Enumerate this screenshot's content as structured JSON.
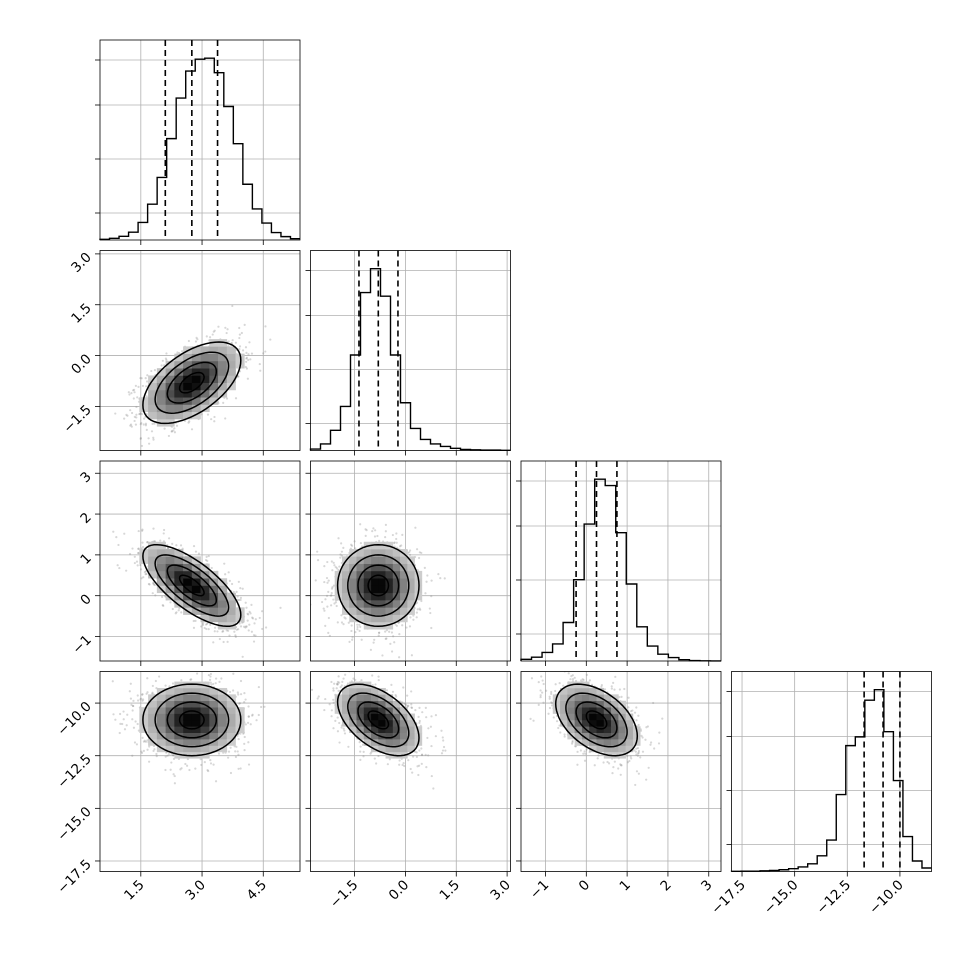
{
  "chart_data": {
    "type": "corner",
    "parameters": [
      {
        "ticks": [
          1.5,
          3.0,
          4.5
        ],
        "tick_labels": [
          "1.5",
          "3.0",
          "4.5"
        ],
        "range": [
          0.5,
          5.4
        ],
        "mean": 2.75,
        "sd": 0.6,
        "quantiles": [
          2.1,
          2.75,
          3.38
        ],
        "hist_values": [
          0.2,
          0.5,
          1.1,
          2.3,
          5.2,
          10.6,
          18.5,
          30.0,
          42.0,
          50.0,
          53.5,
          53.8,
          49.5,
          39.5,
          28.5,
          16.5,
          9.2,
          5.0,
          2.2,
          1.0,
          0.4
        ]
      },
      {
        "ticks": [
          -1.5,
          0.0,
          1.5,
          3.0
        ],
        "tick_labels": [
          "−1.5",
          "0.0",
          "1.5",
          "3.0"
        ],
        "range": [
          -2.8,
          3.1
        ],
        "mean": -0.8,
        "sd": 0.6,
        "quantiles": [
          -1.37,
          -0.8,
          -0.22
        ],
        "hist_values": [
          0.4,
          1.8,
          5.5,
          12.0,
          26.0,
          43.0,
          49.5,
          42.0,
          26.0,
          13.0,
          6.0,
          3.0,
          1.8,
          1.1,
          0.6,
          0.3,
          0.2,
          0.1,
          0.1,
          0.05
        ]
      },
      {
        "ticks": [
          -1,
          0,
          1,
          2,
          3
        ],
        "tick_labels": [
          "−1",
          "0",
          "1",
          "2",
          "3"
        ],
        "range": [
          -1.6,
          3.3
        ],
        "mean": 0.25,
        "sd": 0.5,
        "quantiles": [
          -0.25,
          0.25,
          0.75
        ],
        "hist_values": [
          0.4,
          0.9,
          2.0,
          4.0,
          9.0,
          19.0,
          32.0,
          42.5,
          41.0,
          30.0,
          18.0,
          8.0,
          3.5,
          1.6,
          0.8,
          0.3,
          0.1,
          0.05,
          0.02
        ]
      },
      {
        "ticks": [
          -17.5,
          -15.0,
          -12.5,
          -10.0
        ],
        "tick_labels": [
          "−17.5",
          "−15.0",
          "−12.5",
          "−10.0"
        ],
        "range": [
          -18.0,
          -8.5
        ],
        "mean": -10.8,
        "sd": 0.85,
        "quantiles": [
          -11.7,
          -10.8,
          -10.0
        ],
        "hist_values": [
          0.05,
          0.1,
          0.1,
          0.2,
          0.3,
          0.5,
          0.8,
          1.3,
          2.2,
          4.5,
          9.0,
          22.0,
          36.0,
          38.5,
          49.0,
          52.0,
          40.0,
          26.0,
          10.0,
          3.0,
          1.0
        ]
      }
    ],
    "row_extra_ticks": {
      "1": [
        {
          "value": -1.5,
          "label": "−1.5"
        },
        {
          "value": 0.0,
          "label": "0.0"
        },
        {
          "value": 1.5,
          "label": "1.5"
        },
        {
          "value": 3.0,
          "label": "3.0"
        }
      ]
    },
    "pairs": [
      {
        "row": 1,
        "col": 0,
        "corr": 0.55
      },
      {
        "row": 2,
        "col": 0,
        "corr": -0.72
      },
      {
        "row": 2,
        "col": 1,
        "corr": 0.0
      },
      {
        "row": 3,
        "col": 0,
        "corr": 0.0
      },
      {
        "row": 3,
        "col": 1,
        "corr": -0.5
      },
      {
        "row": 3,
        "col": 2,
        "corr": -0.45
      }
    ],
    "contour_levels_sigma": [
      0.5,
      1.0,
      1.5,
      2.0
    ],
    "grid": true,
    "title": "",
    "colors": {
      "line": "#000000",
      "grid": "#b0b0b0",
      "points": "#8c8c8c"
    }
  }
}
